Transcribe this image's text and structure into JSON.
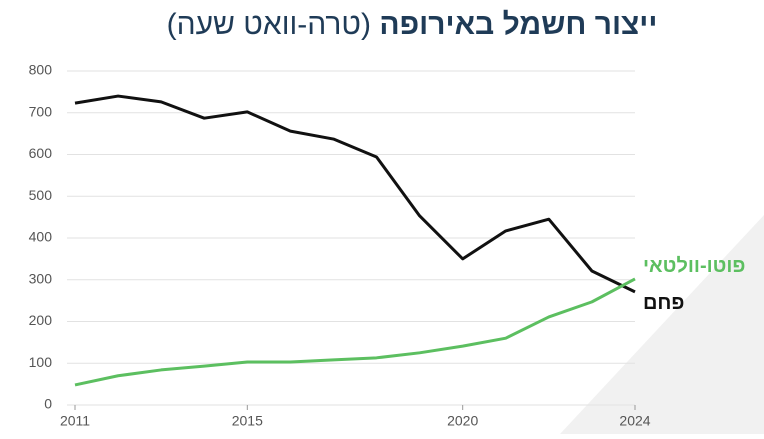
{
  "chart_data": {
    "type": "line",
    "title": "ייצור חשמל באירופה",
    "subtitle": "(טרה-וואט שעה)",
    "x": [
      2011,
      2012,
      2013,
      2014,
      2015,
      2016,
      2017,
      2018,
      2019,
      2020,
      2021,
      2022,
      2023,
      2024
    ],
    "series": [
      {
        "name": "פחם",
        "color": "#111111",
        "values": [
          723,
          740,
          726,
          687,
          702,
          656,
          637,
          594,
          453,
          350,
          417,
          445,
          321,
          271
        ]
      },
      {
        "name": "פוטו-וולטאי",
        "color": "#5cbf60",
        "values": [
          48,
          70,
          84,
          93,
          103,
          103,
          108,
          113,
          125,
          141,
          160,
          211,
          247,
          302
        ]
      }
    ],
    "xlim": [
      2011,
      2024
    ],
    "xticks": [
      2011,
      2015,
      2020,
      2024
    ],
    "ylim": [
      0,
      800
    ],
    "yticks": [
      0,
      100,
      200,
      300,
      400,
      500,
      600,
      700,
      800
    ],
    "grid": true
  }
}
